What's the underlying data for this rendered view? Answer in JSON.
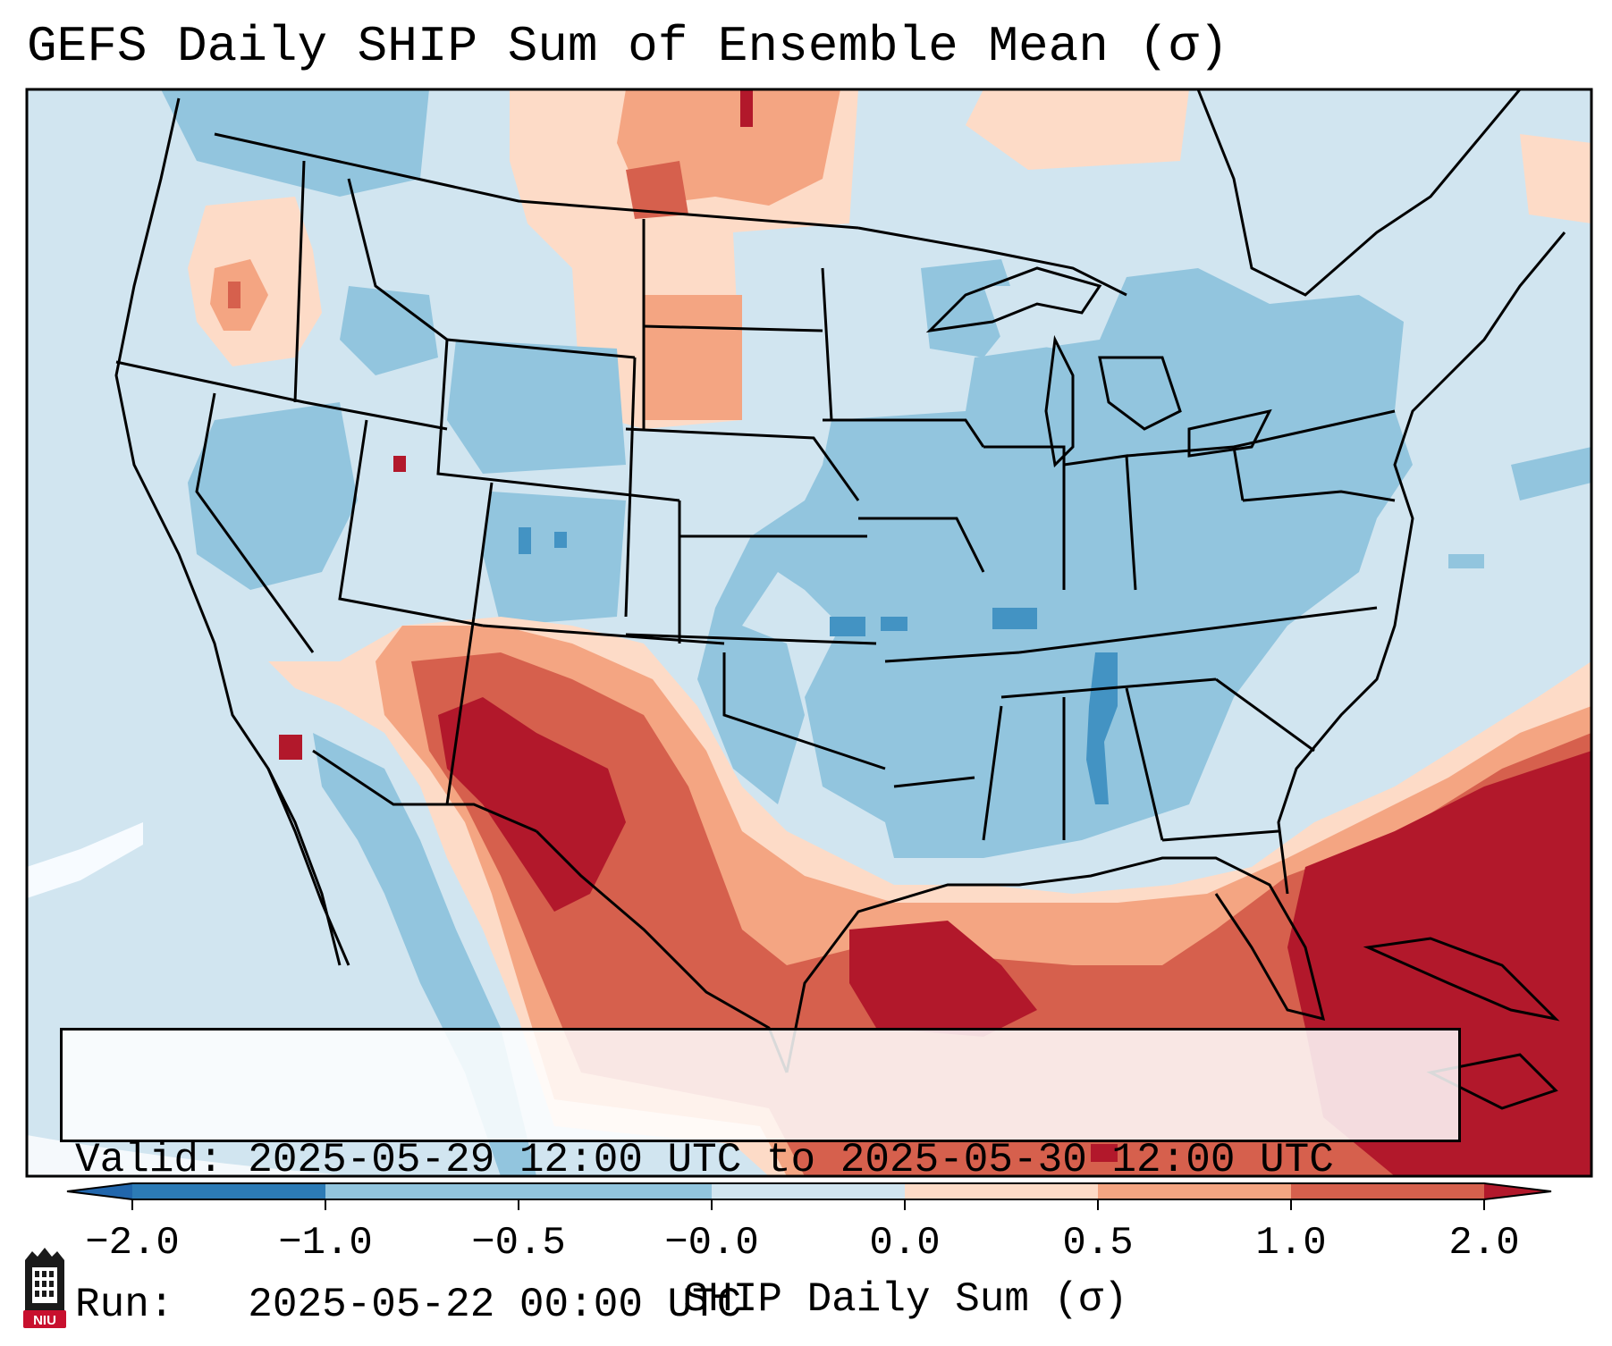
{
  "title": "GEFS Daily SHIP Sum of Ensemble Mean (σ)",
  "info": {
    "valid_label": "Valid:",
    "valid_value": "2025-05-29 12:00 UTC to 2025-05-30 12:00 UTC",
    "run_label": "Run:",
    "run_value": "2025-05-22 00:00 UTC"
  },
  "colorbar": {
    "title": "SHIP Daily Sum (σ)",
    "tick_labels": [
      "−2.0",
      "−1.0",
      "−0.5",
      "−0.0",
      "0.0",
      "0.5",
      "1.0",
      "2.0"
    ],
    "colors": [
      "#2c7bb6",
      "#4393c3",
      "#92c5de",
      "#d1e5f0",
      "#fddbc7",
      "#f4a582",
      "#d6604d",
      "#b2182b"
    ],
    "extend_low_color": "#2166ac",
    "extend_high_color": "#b2182b"
  },
  "logo": {
    "text": "NIU"
  },
  "colors": {
    "ocean_light_blue": "#d1e5f0",
    "blue": "#92c5de",
    "mid_blue": "#4393c3",
    "light_orange": "#fddbc7",
    "orange": "#f4a582",
    "red": "#d6604d",
    "dark_red": "#b2182b",
    "niu_red": "#c8102e"
  }
}
